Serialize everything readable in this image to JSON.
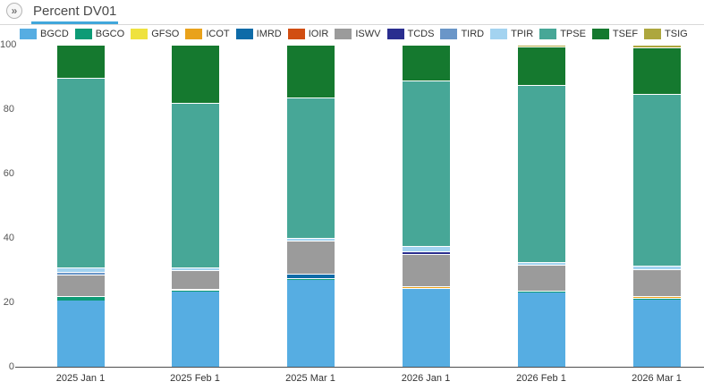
{
  "header": {
    "tab": "Percent DV01",
    "expand_icon_glyph": "»"
  },
  "colors": {
    "tab_underline": "#41a7db",
    "axis_line": "#4d4d4d",
    "tick_text": "#555555",
    "legend_text": "#333333"
  },
  "chart_data": {
    "type": "bar",
    "stacked": true,
    "title": "Percent DV01",
    "xlabel": "",
    "ylabel": "",
    "ylim": [
      0,
      100
    ],
    "yticks": [
      0,
      20,
      40,
      60,
      80,
      100
    ],
    "grid": false,
    "legend_position": "top",
    "categories": [
      "2025 Jan 1",
      "2025 Feb 1",
      "2025 Mar 1",
      "2026 Jan 1",
      "2026 Feb 1",
      "2026 Mar 1"
    ],
    "series": [
      {
        "name": "BGCD",
        "color": "#56ade2",
        "values": [
          20.6,
          23.3,
          26.9,
          24.1,
          23.0,
          20.7
        ]
      },
      {
        "name": "BGCO",
        "color": "#0d9b76",
        "values": [
          1.4,
          0.6,
          0.6,
          0.4,
          0.6,
          0.7
        ]
      },
      {
        "name": "GFSO",
        "color": "#efe23e",
        "values": [
          0,
          0.4,
          0,
          0,
          0,
          0
        ]
      },
      {
        "name": "ICOT",
        "color": "#e9a21b",
        "values": [
          0,
          0,
          0,
          0.4,
          0,
          0.5
        ]
      },
      {
        "name": "IMRD",
        "color": "#0e6ba8",
        "values": [
          0,
          0,
          1.3,
          0,
          0,
          0
        ]
      },
      {
        "name": "IOIR",
        "color": "#d14e12",
        "values": [
          0,
          0,
          0,
          0,
          0,
          0
        ]
      },
      {
        "name": "ISWV",
        "color": "#9b9b9b",
        "values": [
          6.6,
          5.7,
          10.4,
          10.2,
          8.0,
          8.4
        ]
      },
      {
        "name": "TCDS",
        "color": "#2a2e8f",
        "values": [
          0,
          0,
          0,
          0.7,
          0,
          0
        ]
      },
      {
        "name": "TIRD",
        "color": "#6a96c8",
        "values": [
          0.8,
          0,
          0,
          0,
          0,
          0
        ]
      },
      {
        "name": "TPIR",
        "color": "#a3d3f0",
        "values": [
          1.4,
          0.8,
          0.9,
          1.7,
          0.8,
          1.0
        ]
      },
      {
        "name": "TPSE",
        "color": "#47a797",
        "values": [
          58.9,
          51.1,
          43.6,
          51.3,
          55.0,
          53.3
        ]
      },
      {
        "name": "TSEF",
        "color": "#15792f",
        "values": [
          10.3,
          18.1,
          16.3,
          11.2,
          12.0,
          14.6
        ]
      },
      {
        "name": "TSIG",
        "color": "#ada73e",
        "values": [
          0,
          0,
          0,
          0,
          0.6,
          0.8
        ]
      }
    ]
  }
}
